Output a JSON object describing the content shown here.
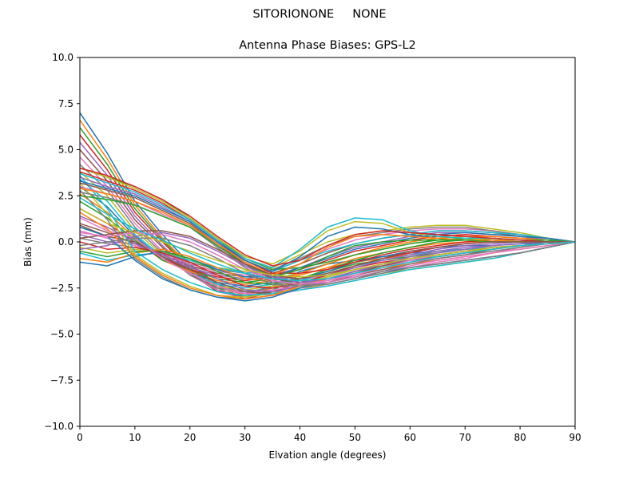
{
  "figure": {
    "suptitle": "SITORIONONE     NONE",
    "title": "Antenna Phase Biases: GPS-L2"
  },
  "chart_data": {
    "type": "line",
    "title": "Antenna Phase Biases: GPS-L2",
    "xlabel": "Elvation angle (degrees)",
    "ylabel": "Bias (mm)",
    "xlim": [
      0,
      90
    ],
    "ylim": [
      -10,
      10
    ],
    "x_ticks": [
      0,
      10,
      20,
      30,
      40,
      50,
      60,
      70,
      80,
      90
    ],
    "x_tick_labels": [
      "0",
      "10",
      "20",
      "30",
      "40",
      "50",
      "60",
      "70",
      "80",
      "90"
    ],
    "y_ticks": [
      10.0,
      7.5,
      5.0,
      2.5,
      0.0,
      -2.5,
      -5.0,
      -7.5,
      -10.0
    ],
    "y_tick_labels": [
      "10.0",
      "7.5",
      "5.0",
      "2.5",
      "0.0",
      "−2.5",
      "−5.0",
      "−7.5",
      "−10.0"
    ],
    "grid": false,
    "legend": "none",
    "x": [
      0,
      5,
      10,
      15,
      20,
      25,
      30,
      35,
      40,
      45,
      50,
      55,
      60,
      65,
      70,
      75,
      80,
      85,
      90
    ],
    "colors": [
      "#1f77b4",
      "#ff7f0e",
      "#2ca02c",
      "#d62728",
      "#9467bd",
      "#8c564b",
      "#e377c2",
      "#7f7f7f",
      "#bcbd22",
      "#17becf"
    ],
    "series": [
      {
        "values": [
          7.0,
          4.8,
          2.2,
          0.4,
          -1.2,
          -2.3,
          -2.8,
          -2.4,
          -1.6,
          -1.2,
          -1.0,
          -0.8,
          -0.6,
          -0.5,
          -0.4,
          -0.3,
          -0.2,
          -0.1,
          0.0
        ]
      },
      {
        "values": [
          6.6,
          4.5,
          2.0,
          0.2,
          -1.3,
          -2.4,
          -2.9,
          -2.5,
          -1.8,
          -1.4,
          -1.1,
          -0.9,
          -0.7,
          -0.5,
          -0.4,
          -0.3,
          -0.2,
          -0.1,
          0.0
        ]
      },
      {
        "values": [
          6.2,
          4.2,
          1.8,
          0.1,
          -1.4,
          -2.5,
          -3.0,
          -2.6,
          -2.0,
          -1.6,
          -1.2,
          -1.0,
          -0.8,
          -0.6,
          -0.4,
          -0.3,
          -0.2,
          -0.1,
          0.0
        ]
      },
      {
        "values": [
          5.8,
          3.9,
          1.6,
          0.0,
          -1.5,
          -2.6,
          -3.1,
          -2.7,
          -2.2,
          -1.8,
          -1.4,
          -1.1,
          -0.9,
          -0.7,
          -0.5,
          -0.3,
          -0.2,
          -0.1,
          0.0
        ]
      },
      {
        "values": [
          5.4,
          3.6,
          1.4,
          -0.2,
          -1.6,
          -2.7,
          -3.0,
          -2.8,
          -2.3,
          -1.9,
          -1.5,
          -1.2,
          -1.0,
          -0.8,
          -0.6,
          -0.4,
          -0.2,
          -0.1,
          0.0
        ]
      },
      {
        "values": [
          5.0,
          3.3,
          1.2,
          -0.3,
          -1.7,
          -2.7,
          -2.9,
          -2.7,
          -2.4,
          -2.0,
          -1.6,
          -1.3,
          -1.0,
          -0.8,
          -0.6,
          -0.4,
          -0.2,
          -0.1,
          0.0
        ]
      },
      {
        "values": [
          4.6,
          3.0,
          1.0,
          -0.5,
          -1.8,
          -2.6,
          -2.8,
          -2.6,
          -2.4,
          -2.1,
          -1.7,
          -1.4,
          -1.1,
          -0.9,
          -0.7,
          -0.5,
          -0.3,
          -0.1,
          0.0
        ]
      },
      {
        "values": [
          4.2,
          2.8,
          0.8,
          -0.6,
          -1.8,
          -2.5,
          -2.7,
          -2.5,
          -2.3,
          -2.0,
          -1.6,
          -1.3,
          -1.0,
          -0.8,
          -0.6,
          -0.4,
          -0.2,
          -0.1,
          0.0
        ]
      },
      {
        "values": [
          3.8,
          2.5,
          0.6,
          -0.7,
          -1.7,
          -2.4,
          -2.6,
          -2.4,
          -2.2,
          -1.9,
          -1.5,
          -1.2,
          -0.9,
          -0.7,
          -0.5,
          -0.4,
          -0.2,
          -0.1,
          0.0
        ]
      },
      {
        "values": [
          3.4,
          2.2,
          0.4,
          -0.8,
          -1.7,
          -2.3,
          -2.5,
          -2.3,
          -2.1,
          -1.7,
          -1.3,
          -1.0,
          -0.7,
          -0.5,
          -0.4,
          -0.3,
          -0.2,
          -0.1,
          0.0
        ]
      },
      {
        "values": [
          3.0,
          1.9,
          0.3,
          -0.9,
          -1.6,
          -2.2,
          -2.4,
          -2.2,
          -2.0,
          -1.6,
          -1.1,
          -0.8,
          -0.5,
          -0.3,
          -0.2,
          -0.2,
          -0.1,
          -0.1,
          0.0
        ]
      },
      {
        "values": [
          2.6,
          1.6,
          0.2,
          -1.0,
          -1.6,
          -2.1,
          -2.3,
          -2.1,
          -1.8,
          -1.4,
          -0.9,
          -0.6,
          -0.3,
          -0.1,
          0.0,
          0.0,
          0.0,
          0.0,
          0.0
        ]
      },
      {
        "values": [
          2.2,
          1.3,
          0.1,
          -1.0,
          -1.5,
          -2.0,
          -2.2,
          -2.0,
          -1.7,
          -1.2,
          -0.7,
          -0.4,
          -0.1,
          0.1,
          0.2,
          0.2,
          0.1,
          0.1,
          0.0
        ]
      },
      {
        "values": [
          1.8,
          1.0,
          0.0,
          -0.9,
          -1.5,
          -1.9,
          -2.1,
          -1.9,
          -1.5,
          -1.0,
          -0.5,
          -0.2,
          0.1,
          0.3,
          0.4,
          0.3,
          0.2,
          0.1,
          0.0
        ]
      },
      {
        "values": [
          1.4,
          0.8,
          0.0,
          -0.8,
          -1.4,
          -1.8,
          -2.0,
          -1.8,
          -1.4,
          -0.8,
          -0.3,
          0.0,
          0.3,
          0.5,
          0.5,
          0.4,
          0.3,
          0.1,
          0.0
        ]
      },
      {
        "values": [
          1.0,
          0.5,
          -0.1,
          -0.7,
          -1.3,
          -1.7,
          -1.9,
          -1.7,
          -1.2,
          -0.6,
          -0.1,
          0.2,
          0.4,
          0.6,
          0.6,
          0.5,
          0.3,
          0.2,
          0.0
        ]
      },
      {
        "values": [
          0.6,
          0.2,
          -0.2,
          -0.6,
          -1.2,
          -1.6,
          -1.8,
          -1.6,
          -1.0,
          -0.4,
          0.1,
          0.4,
          0.6,
          0.7,
          0.7,
          0.6,
          0.4,
          0.2,
          0.0
        ]
      },
      {
        "values": [
          0.2,
          -0.1,
          -0.3,
          -0.5,
          -1.1,
          -1.5,
          -1.7,
          -1.5,
          -0.9,
          -0.2,
          0.3,
          0.5,
          0.7,
          0.8,
          0.8,
          0.6,
          0.4,
          0.2,
          0.0
        ]
      },
      {
        "values": [
          -0.3,
          -0.6,
          -0.4,
          -0.5,
          -1.0,
          -1.4,
          -1.6,
          -1.4,
          -0.7,
          0.0,
          0.4,
          0.6,
          0.8,
          0.9,
          0.9,
          0.7,
          0.5,
          0.2,
          0.0
        ]
      },
      {
        "values": [
          -0.6,
          -1.0,
          -0.7,
          -0.6,
          -1.0,
          -1.4,
          -1.7,
          -1.6,
          -1.0,
          -0.5,
          -0.1,
          0.2,
          0.4,
          0.6,
          0.6,
          0.5,
          0.4,
          0.2,
          0.0
        ]
      },
      {
        "values": [
          -1.1,
          -1.3,
          -0.8,
          -0.5,
          -0.9,
          -1.5,
          -1.9,
          -1.9,
          -1.4,
          -0.9,
          -0.4,
          -0.1,
          0.2,
          0.4,
          0.5,
          0.4,
          0.3,
          0.2,
          0.0
        ]
      },
      {
        "values": [
          -0.9,
          -1.1,
          -0.6,
          -0.4,
          -0.8,
          -1.4,
          -2.0,
          -2.1,
          -1.7,
          -1.2,
          -0.7,
          -0.3,
          0.0,
          0.2,
          0.3,
          0.3,
          0.2,
          0.1,
          0.0
        ]
      },
      {
        "values": [
          -0.5,
          -0.8,
          -0.5,
          -0.5,
          -0.9,
          -1.6,
          -2.2,
          -2.3,
          -2.0,
          -1.5,
          -1.0,
          -0.6,
          -0.3,
          0.0,
          0.1,
          0.2,
          0.1,
          0.1,
          0.0
        ]
      },
      {
        "values": [
          0.0,
          -0.4,
          -0.3,
          -0.6,
          -1.1,
          -1.8,
          -2.4,
          -2.5,
          -2.2,
          -1.8,
          -1.3,
          -0.9,
          -0.6,
          -0.3,
          -0.1,
          0.0,
          0.0,
          0.0,
          0.0
        ]
      },
      {
        "values": [
          0.4,
          0.0,
          -0.1,
          -0.7,
          -1.3,
          -2.0,
          -2.6,
          -2.7,
          -2.4,
          -2.0,
          -1.6,
          -1.2,
          -0.9,
          -0.6,
          -0.4,
          -0.2,
          -0.1,
          0.0,
          0.0
        ]
      },
      {
        "values": [
          0.9,
          0.3,
          0.0,
          -0.8,
          -1.5,
          -2.2,
          -2.7,
          -2.8,
          -2.5,
          -2.2,
          -1.8,
          -1.5,
          -1.2,
          -0.9,
          -0.7,
          -0.4,
          -0.2,
          -0.1,
          0.0
        ]
      },
      {
        "values": [
          1.3,
          0.6,
          0.2,
          -0.9,
          -1.7,
          -2.4,
          -2.8,
          -2.9,
          -2.6,
          -2.3,
          -2.0,
          -1.7,
          -1.4,
          -1.1,
          -0.9,
          -0.6,
          -0.3,
          -0.1,
          0.0
        ]
      },
      {
        "values": [
          2.8,
          1.2,
          -0.9,
          -1.9,
          -2.6,
          -3.0,
          -3.1,
          -2.9,
          -2.5,
          -2.2,
          -1.9,
          -1.6,
          -1.4,
          -1.2,
          -1.0,
          -0.8,
          -0.6,
          -0.3,
          0.0
        ]
      },
      {
        "values": [
          3.2,
          1.5,
          -0.7,
          -1.7,
          -2.4,
          -2.9,
          -3.0,
          -2.8,
          -2.5,
          -2.3,
          -2.0,
          -1.7,
          -1.5,
          -1.3,
          -1.1,
          -0.9,
          -0.6,
          -0.3,
          0.0
        ]
      },
      {
        "values": [
          3.6,
          1.8,
          -0.5,
          -1.5,
          -2.2,
          -2.7,
          -2.9,
          -2.8,
          -2.6,
          -2.4,
          -2.1,
          -1.8,
          -1.5,
          -1.3,
          -1.1,
          -0.9,
          -0.6,
          -0.3,
          0.0
        ]
      },
      {
        "values": [
          0.8,
          0.3,
          -1.0,
          -2.0,
          -2.6,
          -3.0,
          -3.2,
          -3.0,
          -2.5,
          -2.2,
          -1.9,
          -1.6,
          -1.4,
          -1.2,
          -1.0,
          -0.8,
          -0.6,
          -0.3,
          0.0
        ]
      },
      {
        "values": [
          1.6,
          0.7,
          -0.8,
          -1.8,
          -2.5,
          -2.9,
          -3.1,
          -2.9,
          -2.4,
          -2.0,
          -1.7,
          -1.4,
          -1.2,
          -1.0,
          -0.8,
          -0.6,
          -0.4,
          -0.2,
          0.0
        ]
      },
      {
        "values": [
          4.0,
          3.5,
          3.0,
          2.3,
          1.3,
          0.2,
          -0.9,
          -1.5,
          -1.4,
          -1.1,
          -0.7,
          -0.4,
          -0.1,
          0.1,
          0.2,
          0.2,
          0.1,
          0.1,
          0.0
        ]
      },
      {
        "values": [
          3.8,
          3.3,
          2.8,
          2.1,
          1.2,
          0.1,
          -1.0,
          -1.7,
          -1.7,
          -1.5,
          -1.1,
          -0.7,
          -0.4,
          -0.2,
          0.0,
          0.1,
          0.1,
          0.0,
          0.0
        ]
      },
      {
        "values": [
          3.5,
          3.0,
          2.6,
          1.9,
          1.1,
          0.0,
          -1.1,
          -1.9,
          -2.0,
          -1.8,
          -1.4,
          -1.0,
          -0.7,
          -0.4,
          -0.2,
          -0.1,
          0.0,
          0.0,
          0.0
        ]
      },
      {
        "values": [
          3.2,
          2.8,
          2.4,
          1.7,
          1.0,
          -0.1,
          -1.2,
          -2.0,
          -2.2,
          -2.0,
          -1.7,
          -1.3,
          -1.0,
          -0.7,
          -0.5,
          -0.3,
          -0.2,
          -0.1,
          0.0
        ]
      },
      {
        "values": [
          3.0,
          2.6,
          2.2,
          1.5,
          0.9,
          -0.2,
          -1.3,
          -2.1,
          -2.3,
          -2.2,
          -1.9,
          -1.6,
          -1.3,
          -1.0,
          -0.8,
          -0.6,
          -0.4,
          -0.2,
          0.0
        ]
      },
      {
        "values": [
          2.7,
          2.4,
          2.0,
          1.4,
          0.8,
          -0.3,
          -1.4,
          -2.2,
          -2.3,
          -2.3,
          -2.0,
          -1.7,
          -1.4,
          -1.2,
          -1.0,
          -0.8,
          -0.6,
          -0.3,
          0.0
        ]
      },
      {
        "values": [
          4.0,
          3.5,
          2.9,
          2.2,
          1.3,
          0.2,
          -0.8,
          -1.2,
          -0.5,
          0.6,
          1.1,
          1.0,
          0.5,
          0.3,
          0.2,
          0.1,
          0.1,
          0.0,
          0.0
        ]
      },
      {
        "values": [
          3.7,
          3.2,
          2.7,
          2.0,
          1.2,
          0.1,
          -0.9,
          -1.4,
          -0.4,
          0.8,
          1.3,
          1.2,
          0.6,
          0.3,
          0.2,
          0.2,
          0.1,
          0.0,
          0.0
        ]
      },
      {
        "values": [
          3.3,
          2.9,
          2.5,
          1.8,
          1.1,
          0.0,
          -1.0,
          -1.6,
          -0.8,
          0.3,
          0.8,
          0.7,
          0.4,
          0.2,
          0.1,
          0.1,
          0.0,
          0.0,
          0.0
        ]
      },
      {
        "values": [
          2.9,
          2.6,
          2.2,
          1.6,
          0.9,
          -0.1,
          -1.1,
          -1.8,
          -1.2,
          -0.3,
          0.3,
          0.4,
          0.3,
          0.2,
          0.1,
          0.1,
          0.0,
          0.0,
          0.0
        ]
      },
      {
        "values": [
          2.5,
          2.3,
          2.0,
          1.4,
          0.8,
          -0.2,
          -1.2,
          -1.9,
          -1.5,
          -0.8,
          -0.2,
          0.0,
          0.1,
          0.1,
          0.1,
          0.0,
          0.0,
          0.0,
          0.0
        ]
      },
      {
        "values": [
          4.0,
          3.6,
          3.0,
          2.3,
          1.4,
          0.3,
          -0.7,
          -1.3,
          -1.0,
          -0.2,
          0.4,
          0.6,
          0.5,
          0.4,
          0.3,
          0.2,
          0.1,
          0.0,
          0.0
        ]
      },
      {
        "values": [
          -0.4,
          -0.2,
          0.3,
          0.5,
          0.2,
          -0.5,
          -1.3,
          -1.9,
          -2.2,
          -2.0,
          -1.6,
          -1.2,
          -0.8,
          -0.5,
          -0.3,
          -0.2,
          -0.1,
          0.0,
          0.0
        ]
      },
      {
        "values": [
          0.2,
          0.4,
          0.6,
          0.6,
          0.3,
          -0.4,
          -1.2,
          -1.8,
          -2.0,
          -1.7,
          -1.3,
          -0.9,
          -0.5,
          -0.3,
          -0.1,
          0.0,
          0.0,
          0.0,
          0.0
        ]
      },
      {
        "values": [
          0.5,
          0.3,
          0.5,
          0.4,
          0.0,
          -0.7,
          -1.5,
          -2.1,
          -2.3,
          -2.1,
          -1.8,
          -1.4,
          -1.0,
          -0.7,
          -0.5,
          -0.3,
          -0.2,
          -0.1,
          0.0
        ]
      },
      {
        "values": [
          -0.2,
          0.0,
          0.2,
          0.2,
          -0.2,
          -0.9,
          -1.7,
          -2.3,
          -2.4,
          -2.3,
          -2.0,
          -1.6,
          -1.2,
          -0.9,
          -0.7,
          -0.5,
          -0.3,
          -0.1,
          0.0
        ]
      },
      {
        "values": [
          1.8,
          1.0,
          0.5,
          0.0,
          -0.5,
          -1.0,
          -1.5,
          -1.8,
          -1.9,
          -1.8,
          -1.5,
          -1.2,
          -0.9,
          -0.7,
          -0.5,
          -0.3,
          -0.2,
          -0.1,
          0.0
        ]
      },
      {
        "values": [
          2.4,
          1.5,
          0.7,
          0.1,
          -0.6,
          -1.2,
          -1.7,
          -2.0,
          -2.1,
          -2.0,
          -1.7,
          -1.4,
          -1.1,
          -0.8,
          -0.6,
          -0.4,
          -0.2,
          -0.1,
          0.0
        ]
      }
    ]
  }
}
